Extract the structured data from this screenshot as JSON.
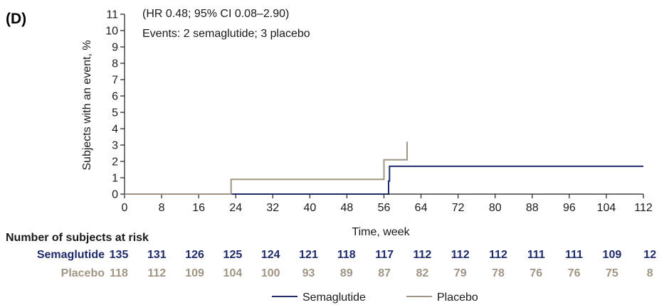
{
  "panel_label": "(D)",
  "annotations": {
    "hr": "(HR 0.48; 95% CI 0.08–2.90)",
    "events": "Events: 2 semaglutide; 3 placebo"
  },
  "risk_table": {
    "title": "Number of subjects at risk",
    "rows": [
      {
        "label": "Semaglutide",
        "color": "#1f2a6b",
        "values": [
          "135",
          "131",
          "126",
          "125",
          "124",
          "121",
          "118",
          "117",
          "112",
          "112",
          "112",
          "111",
          "111",
          "109",
          "12"
        ]
      },
      {
        "label": "Placebo",
        "color": "#a09584",
        "values": [
          "118",
          "112",
          "109",
          "104",
          "100",
          "93",
          "89",
          "87",
          "82",
          "79",
          "78",
          "76",
          "76",
          "75",
          "8"
        ]
      }
    ]
  },
  "chart_data": {
    "type": "line",
    "xlabel": "Time, week",
    "ylabel": "Subjects with an event, %",
    "xlim": [
      0,
      112
    ],
    "ylim": [
      0,
      11
    ],
    "xticks": [
      0,
      8,
      16,
      24,
      32,
      40,
      48,
      56,
      64,
      72,
      80,
      88,
      96,
      104,
      112
    ],
    "yticks": [
      0,
      1,
      2,
      3,
      4,
      5,
      6,
      7,
      8,
      9,
      10,
      11
    ],
    "grid": false,
    "legend_position": "bottom-center",
    "series": [
      {
        "name": "Semaglutide",
        "color": "#1f2a6b",
        "x": [
          0,
          57,
          57,
          57.2,
          57.2,
          112
        ],
        "y": [
          0,
          0,
          0.8,
          0.8,
          1.7,
          1.7
        ]
      },
      {
        "name": "Placebo",
        "color": "#a09584",
        "x": [
          0,
          23,
          23,
          56,
          56,
          61,
          61
        ],
        "y": [
          0,
          0,
          0.9,
          0.9,
          2.1,
          2.1,
          3.2
        ]
      }
    ]
  }
}
